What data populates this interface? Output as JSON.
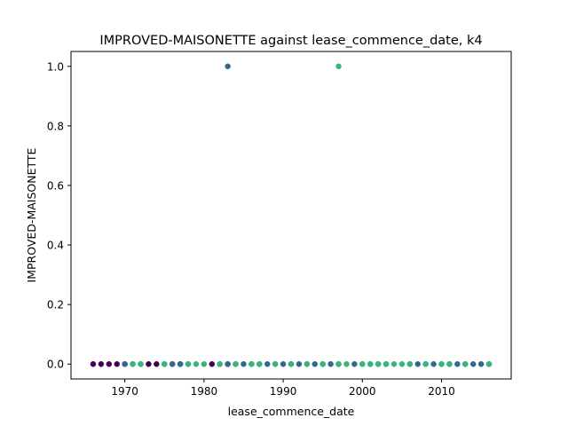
{
  "chart_data": {
    "type": "scatter",
    "title": "IMPROVED-MAISONETTE against lease_commence_date, k4",
    "xlabel": "lease_commence_date",
    "ylabel": "IMPROVED-MAISONETTE",
    "xlim": [
      1963.2,
      2018.8
    ],
    "ylim": [
      -0.05,
      1.05
    ],
    "xticks": [
      1970,
      1980,
      1990,
      2000,
      2010
    ],
    "xtick_labels": [
      "1970",
      "1980",
      "1990",
      "2000",
      "2010"
    ],
    "yticks": [
      0.0,
      0.2,
      0.4,
      0.6,
      0.8,
      1.0
    ],
    "ytick_labels": [
      "0.0",
      "0.2",
      "0.4",
      "0.6",
      "0.8",
      "1.0"
    ],
    "grid": false,
    "legend": "none",
    "series": [
      {
        "color": "#440154",
        "x": [
          1966,
          1967,
          1968,
          1969,
          1970,
          1973,
          1974,
          1976,
          1977,
          1981,
          1983
        ],
        "y": [
          0,
          0,
          0,
          0,
          0,
          0,
          0,
          0,
          0,
          0,
          0
        ]
      },
      {
        "color": "#31688e",
        "x": [
          1970,
          1971,
          1972,
          1975,
          1976,
          1977,
          1978,
          1982,
          1983,
          1983,
          1984,
          1985,
          1986,
          1987,
          1988,
          1989,
          1990,
          1991,
          1992,
          1993,
          1994,
          1995,
          1996,
          1997,
          1999,
          2000,
          2001,
          2002,
          2003,
          2006,
          2007,
          2008,
          2009,
          2010,
          2011,
          2012,
          2013,
          2014,
          2015,
          2016
        ],
        "y": [
          0,
          0,
          0,
          0,
          0,
          0,
          0,
          0,
          0,
          1,
          0,
          0,
          0,
          0,
          0,
          0,
          0,
          0,
          0,
          0,
          0,
          0,
          0,
          0,
          0,
          0,
          0,
          0,
          0,
          0,
          0,
          0,
          0,
          0,
          0,
          0,
          0,
          0,
          0,
          0
        ]
      },
      {
        "color": "#35b779",
        "x": [
          1971,
          1972,
          1975,
          1978,
          1979,
          1980,
          1982,
          1984,
          1986,
          1987,
          1989,
          1991,
          1993,
          1995,
          1997,
          1997,
          1998,
          2000,
          2001,
          2002,
          2003,
          2004,
          2005,
          2006,
          2008,
          2010,
          2011,
          2013,
          2016
        ],
        "y": [
          0,
          0,
          0,
          0,
          0,
          0,
          0,
          0,
          0,
          0,
          0,
          0,
          0,
          0,
          0,
          1,
          0,
          0,
          0,
          0,
          0,
          0,
          0,
          0,
          0,
          0,
          0,
          0,
          0
        ]
      }
    ]
  }
}
